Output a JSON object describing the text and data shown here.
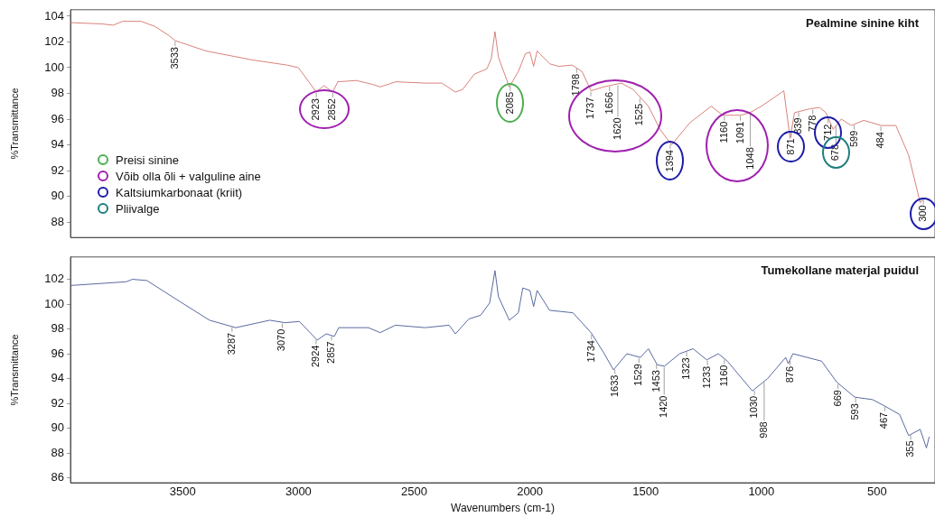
{
  "chart_data": [
    {
      "type": "line",
      "title": "Pealmine sinine kiht",
      "ylabel": "%Transmittance",
      "xlim": [
        3985,
        250
      ],
      "ylim": [
        86.8,
        104.5
      ],
      "xticks": [
        3500,
        3000,
        2500,
        2000,
        1500,
        1000,
        500
      ],
      "yticks": [
        88,
        90,
        92,
        94,
        96,
        98,
        100,
        102,
        104
      ],
      "tick_labels": "y",
      "grid": false,
      "legend": false,
      "marker": "none",
      "line_style": "solid",
      "x": [
        3985,
        3850,
        3800,
        3760,
        3680,
        3620,
        3560,
        3533,
        3400,
        3200,
        3050,
        3000,
        2923,
        2890,
        2852,
        2830,
        2750,
        2680,
        2647,
        2580,
        2450,
        2380,
        2322,
        2291,
        2240,
        2186,
        2167,
        2151,
        2136,
        2089,
        2050,
        2019,
        2000,
        1984,
        1969,
        1915,
        1876,
        1818,
        1775,
        1736,
        1682,
        1605,
        1554,
        1488,
        1438,
        1388,
        1310,
        1217,
        1167,
        1089,
        1050,
        1000,
        903,
        876,
        857,
        791,
        748,
        721,
        690,
        655,
        612,
        558,
        481,
        419,
        364,
        314,
        295
      ],
      "series": [
        {
          "color": "#d9827a",
          "values": [
            103.5,
            103.4,
            103.3,
            103.6,
            103.6,
            103.2,
            102.5,
            102.1,
            101.3,
            100.6,
            100.2,
            100.0,
            98.1,
            98.6,
            98.1,
            98.9,
            99.0,
            98.7,
            98.5,
            98.9,
            98.8,
            98.8,
            98.1,
            98.3,
            99.5,
            99.9,
            100.7,
            102.8,
            100.8,
            98.5,
            99.7,
            101.1,
            101.2,
            100.1,
            101.3,
            100.3,
            100.1,
            100.2,
            99.7,
            98.2,
            98.5,
            98.8,
            98.3,
            97.0,
            95.2,
            94.0,
            95.7,
            97.0,
            96.3,
            96.3,
            96.5,
            97.0,
            98.2,
            94.5,
            96.5,
            96.8,
            96.9,
            96.5,
            95.2,
            96.0,
            95.5,
            95.9,
            95.5,
            95.5,
            93.2,
            89.5,
            89.9
          ]
        }
      ],
      "annotations": [
        "Preisi sinine",
        "Võib olla õli + valguline aine",
        "Kaltsiumkarbonaat (kriit)",
        "Pliivalge",
        {
          "text": "3533",
          "x": 3533,
          "y": 102.1
        },
        {
          "text": "2923",
          "x": 2923,
          "y": 98.1
        },
        {
          "text": "2852",
          "x": 2852,
          "y": 98.1
        },
        {
          "text": "2085",
          "x": 2085,
          "y": 98.6
        },
        {
          "text": "1798",
          "x": 1798,
          "y": 100.0
        },
        {
          "text": "1737",
          "x": 1737,
          "y": 98.2
        },
        {
          "text": "1656",
          "x": 1656,
          "y": 98.6
        },
        {
          "text": "1620",
          "x": 1620,
          "y": 98.7
        },
        {
          "text": "1525",
          "x": 1525,
          "y": 97.7
        },
        {
          "text": "1394",
          "x": 1394,
          "y": 94.1
        },
        {
          "text": "1160",
          "x": 1160,
          "y": 96.3
        },
        {
          "text": "1091",
          "x": 1091,
          "y": 96.3
        },
        {
          "text": "1048",
          "x": 1048,
          "y": 96.5
        },
        {
          "text": "871",
          "x": 871,
          "y": 95.0
        },
        {
          "text": "839",
          "x": 839,
          "y": 96.6
        },
        {
          "text": "778",
          "x": 778,
          "y": 96.8
        },
        {
          "text": "712",
          "x": 712,
          "y": 96.1
        },
        {
          "text": "678",
          "x": 678,
          "y": 95.5
        },
        {
          "text": "599",
          "x": 599,
          "y": 95.6
        },
        {
          "text": "484",
          "x": 484,
          "y": 95.5
        },
        {
          "text": "300",
          "x": 300,
          "y": 89.8
        }
      ]
    },
    {
      "type": "line",
      "title": "Tumekollane materjal puidul",
      "xlabel": "Wavenumbers (cm-1)",
      "ylabel": "%Transmittance",
      "xlim": [
        3985,
        250
      ],
      "ylim": [
        85.6,
        103.8
      ],
      "xticks": [
        3500,
        3000,
        2500,
        2000,
        1500,
        1000,
        500
      ],
      "yticks": [
        86,
        88,
        90,
        92,
        94,
        96,
        98,
        100,
        102
      ],
      "grid": false,
      "legend": false,
      "marker": "none",
      "line_style": "solid",
      "x": [
        3985,
        3744,
        3717,
        3655,
        3512,
        3384,
        3271,
        3124,
        3058,
        2996,
        2919,
        2880,
        2845,
        2826,
        2698,
        2647,
        2581,
        2453,
        2349,
        2322,
        2264,
        2213,
        2174,
        2151,
        2136,
        2089,
        2050,
        2031,
        2000,
        1984,
        1969,
        1915,
        1814,
        1736,
        1682,
        1639,
        1581,
        1523,
        1488,
        1450,
        1419,
        1353,
        1295,
        1236,
        1186,
        1147,
        1039,
        973,
        895,
        884,
        864,
        740,
        674,
        597,
        520,
        469,
        403,
        364,
        314,
        287,
        275
      ],
      "series": [
        {
          "color": "#5a6aa0",
          "values": [
            101.5,
            101.8,
            102.0,
            101.9,
            100.2,
            98.7,
            98.1,
            98.7,
            98.5,
            98.6,
            97.1,
            97.6,
            97.4,
            98.1,
            98.1,
            97.7,
            98.3,
            98.1,
            98.3,
            97.6,
            98.8,
            99.1,
            100.1,
            102.7,
            100.6,
            98.7,
            99.3,
            101.3,
            101.1,
            99.8,
            101.1,
            99.5,
            99.3,
            97.7,
            96.1,
            94.7,
            96.0,
            95.7,
            96.4,
            95.1,
            95.0,
            96.0,
            96.4,
            95.5,
            96.0,
            95.4,
            93.0,
            94.0,
            95.7,
            95.2,
            96.0,
            95.4,
            93.7,
            92.5,
            92.3,
            91.8,
            91.1,
            89.4,
            89.9,
            88.4,
            89.3
          ]
        }
      ],
      "annotations": [
        {
          "text": "3287",
          "x": 3287,
          "y": 98.2
        },
        {
          "text": "3070",
          "x": 3070,
          "y": 98.5
        },
        {
          "text": "2924",
          "x": 2924,
          "y": 97.2
        },
        {
          "text": "2857",
          "x": 2857,
          "y": 97.5
        },
        {
          "text": "1734",
          "x": 1734,
          "y": 97.6
        },
        {
          "text": "1633",
          "x": 1633,
          "y": 94.8
        },
        {
          "text": "1529",
          "x": 1529,
          "y": 95.7
        },
        {
          "text": "1453",
          "x": 1453,
          "y": 95.2
        },
        {
          "text": "1420",
          "x": 1420,
          "y": 95.0
        },
        {
          "text": "1323",
          "x": 1323,
          "y": 96.2
        },
        {
          "text": "1233",
          "x": 1233,
          "y": 95.5
        },
        {
          "text": "1160",
          "x": 1160,
          "y": 95.6
        },
        {
          "text": "1030",
          "x": 1030,
          "y": 93.1
        },
        {
          "text": "988",
          "x": 988,
          "y": 93.8
        },
        {
          "text": "876",
          "x": 876,
          "y": 95.5
        },
        {
          "text": "669",
          "x": 669,
          "y": 93.6
        },
        {
          "text": "593",
          "x": 593,
          "y": 92.5
        },
        {
          "text": "467",
          "x": 467,
          "y": 91.8
        },
        {
          "text": "355",
          "x": 355,
          "y": 89.5
        }
      ]
    }
  ]
}
